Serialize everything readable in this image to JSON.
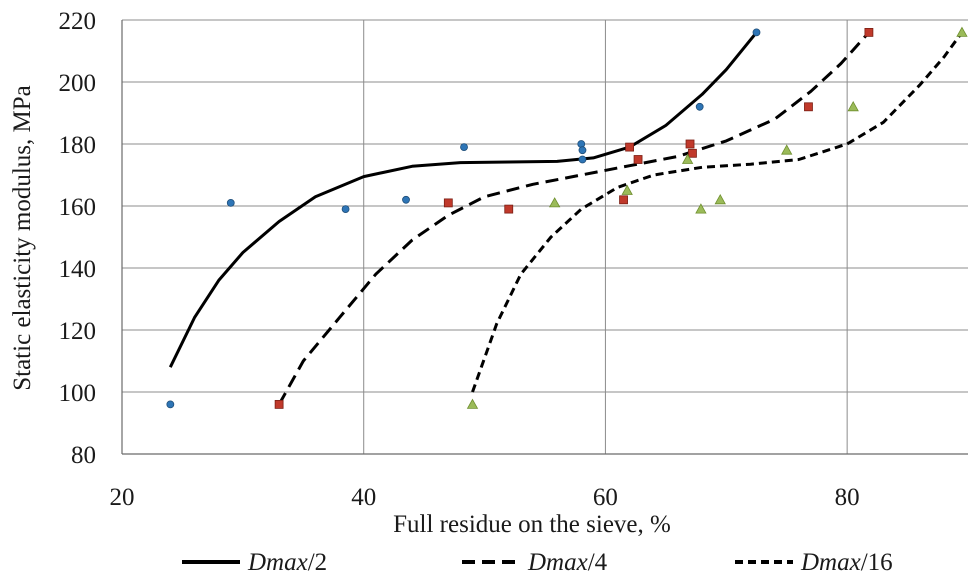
{
  "chart_data": {
    "type": "scatter",
    "xlabel": "Full residue on the sieve, %",
    "ylabel": "Static elasticity modulus, MPa",
    "xlim": [
      20,
      90
    ],
    "ylim": [
      80,
      220
    ],
    "x_ticks": [
      20,
      40,
      60,
      80
    ],
    "y_ticks": [
      80,
      100,
      120,
      140,
      160,
      180,
      200,
      220
    ],
    "grid": true,
    "legend_position": "bottom",
    "series": [
      {
        "name": "Dmax/2",
        "legend_prefix": "Dmax",
        "legend_suffix": "/2",
        "color": "#2e75b6",
        "marker": "circle",
        "line_style": "solid",
        "points": [
          [
            24,
            96
          ],
          [
            29,
            161
          ],
          [
            38.5,
            159
          ],
          [
            43.5,
            162
          ],
          [
            48.3,
            179
          ],
          [
            58,
            180
          ],
          [
            58.1,
            178
          ],
          [
            58.1,
            175
          ],
          [
            67.8,
            192
          ],
          [
            72.5,
            216
          ]
        ],
        "trend": [
          [
            24,
            108
          ],
          [
            26,
            124
          ],
          [
            28,
            136
          ],
          [
            30,
            145
          ],
          [
            33,
            155
          ],
          [
            36,
            163
          ],
          [
            40,
            169.5
          ],
          [
            44,
            172.8
          ],
          [
            48,
            174
          ],
          [
            52,
            174.2
          ],
          [
            56,
            174.4
          ],
          [
            59,
            175.5
          ],
          [
            62,
            179
          ],
          [
            65,
            186
          ],
          [
            68,
            196
          ],
          [
            70,
            204
          ],
          [
            72.5,
            216
          ]
        ]
      },
      {
        "name": "Dmax/4",
        "legend_prefix": "Dmax",
        "legend_suffix": "/4",
        "color": "#c0392b",
        "marker": "square",
        "line_style": "dashed",
        "points": [
          [
            33,
            96
          ],
          [
            47,
            161
          ],
          [
            52,
            159
          ],
          [
            61.5,
            162
          ],
          [
            62,
            179
          ],
          [
            62.7,
            175
          ],
          [
            67,
            180
          ],
          [
            67.2,
            177
          ],
          [
            76.8,
            192
          ],
          [
            81.8,
            216
          ]
        ],
        "trend": [
          [
            33,
            96
          ],
          [
            35,
            110
          ],
          [
            38,
            124
          ],
          [
            41,
            138
          ],
          [
            44,
            149
          ],
          [
            47,
            157
          ],
          [
            50,
            163
          ],
          [
            54,
            167
          ],
          [
            58,
            170
          ],
          [
            62,
            173
          ],
          [
            66,
            176
          ],
          [
            70,
            181
          ],
          [
            74,
            188
          ],
          [
            77,
            197
          ],
          [
            79.5,
            206
          ],
          [
            81.8,
            216
          ]
        ]
      },
      {
        "name": "Dmax/16",
        "legend_prefix": "Dmax",
        "legend_suffix": "/16",
        "color": "#9bbb59",
        "marker": "triangle",
        "line_style": "short-dashed",
        "points": [
          [
            49,
            96
          ],
          [
            55.8,
            161
          ],
          [
            61.8,
            165
          ],
          [
            66.8,
            175
          ],
          [
            67.9,
            159
          ],
          [
            69.5,
            162
          ],
          [
            75,
            178
          ],
          [
            80.5,
            192
          ],
          [
            89.5,
            216
          ]
        ],
        "trend": [
          [
            49,
            100
          ],
          [
            51,
            122
          ],
          [
            53,
            138
          ],
          [
            55.5,
            150
          ],
          [
            58,
            159
          ],
          [
            61,
            166
          ],
          [
            64,
            170
          ],
          [
            68,
            172.5
          ],
          [
            72,
            173.5
          ],
          [
            76,
            175
          ],
          [
            80,
            180
          ],
          [
            83,
            187
          ],
          [
            86,
            199
          ],
          [
            88,
            208
          ],
          [
            89.5,
            216
          ]
        ]
      }
    ]
  }
}
